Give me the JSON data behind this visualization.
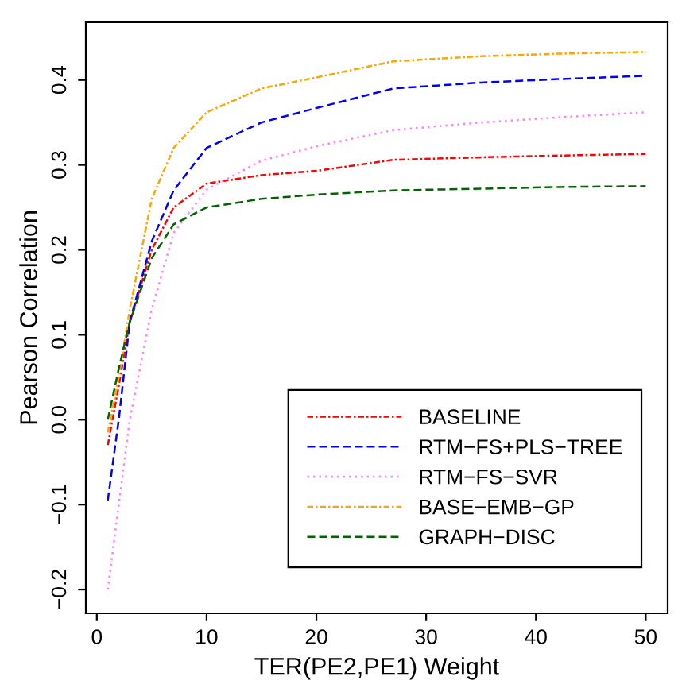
{
  "chart_data": {
    "type": "line",
    "xlabel": "TER(PE2,PE1) Weight",
    "ylabel": "Pearson Correlation",
    "x": [
      1,
      2,
      3,
      5,
      7,
      10,
      15,
      20,
      27,
      35,
      42,
      50
    ],
    "series": [
      {
        "name": "BASELINE",
        "color": "#ff0000",
        "line_style": "dashdot",
        "values": [
          -0.03,
          0.04,
          0.115,
          0.2,
          0.25,
          0.278,
          0.288,
          0.293,
          0.306,
          0.309,
          0.311,
          0.313
        ]
      },
      {
        "name": "RTM−FS+PLS−TREE",
        "color": "#0000ff",
        "line_style": "dashed",
        "values": [
          -0.095,
          0.0,
          0.115,
          0.21,
          0.27,
          0.32,
          0.35,
          0.367,
          0.39,
          0.397,
          0.401,
          0.405
        ]
      },
      {
        "name": "RTM−FS−SVR",
        "color": "#ff80ff",
        "line_style": "dotted",
        "values": [
          -0.2,
          -0.1,
          0.0,
          0.13,
          0.22,
          0.271,
          0.305,
          0.322,
          0.341,
          0.35,
          0.356,
          0.362
        ]
      },
      {
        "name": "BASE−EMB−GP",
        "color": "#ffa500",
        "line_style": "dashdot",
        "values": [
          -0.015,
          0.05,
          0.13,
          0.26,
          0.32,
          0.362,
          0.39,
          0.403,
          0.422,
          0.428,
          0.431,
          0.433
        ]
      },
      {
        "name": "GRAPH−DISC",
        "color": "#006400",
        "line_style": "dashed",
        "values": [
          0.0,
          0.06,
          0.115,
          0.19,
          0.23,
          0.25,
          0.26,
          0.265,
          0.27,
          0.272,
          0.274,
          0.275
        ]
      }
    ],
    "xlim": [
      -1,
      52
    ],
    "ylim": [
      -0.228,
      0.468
    ],
    "xticks": [
      0,
      10,
      20,
      30,
      40,
      50
    ],
    "yticks": [
      {
        "value": -0.2,
        "label": "−0.2"
      },
      {
        "value": -0.1,
        "label": "−0.1"
      },
      {
        "value": 0,
        "label": "0.0"
      },
      {
        "value": 0.1,
        "label": "0.1"
      },
      {
        "value": 0.2,
        "label": "0.2"
      },
      {
        "value": 0.3,
        "label": "0.3"
      },
      {
        "value": 0.4,
        "label": "0.4"
      }
    ],
    "grid": false,
    "legend": "bottom right",
    "marker": "none"
  }
}
